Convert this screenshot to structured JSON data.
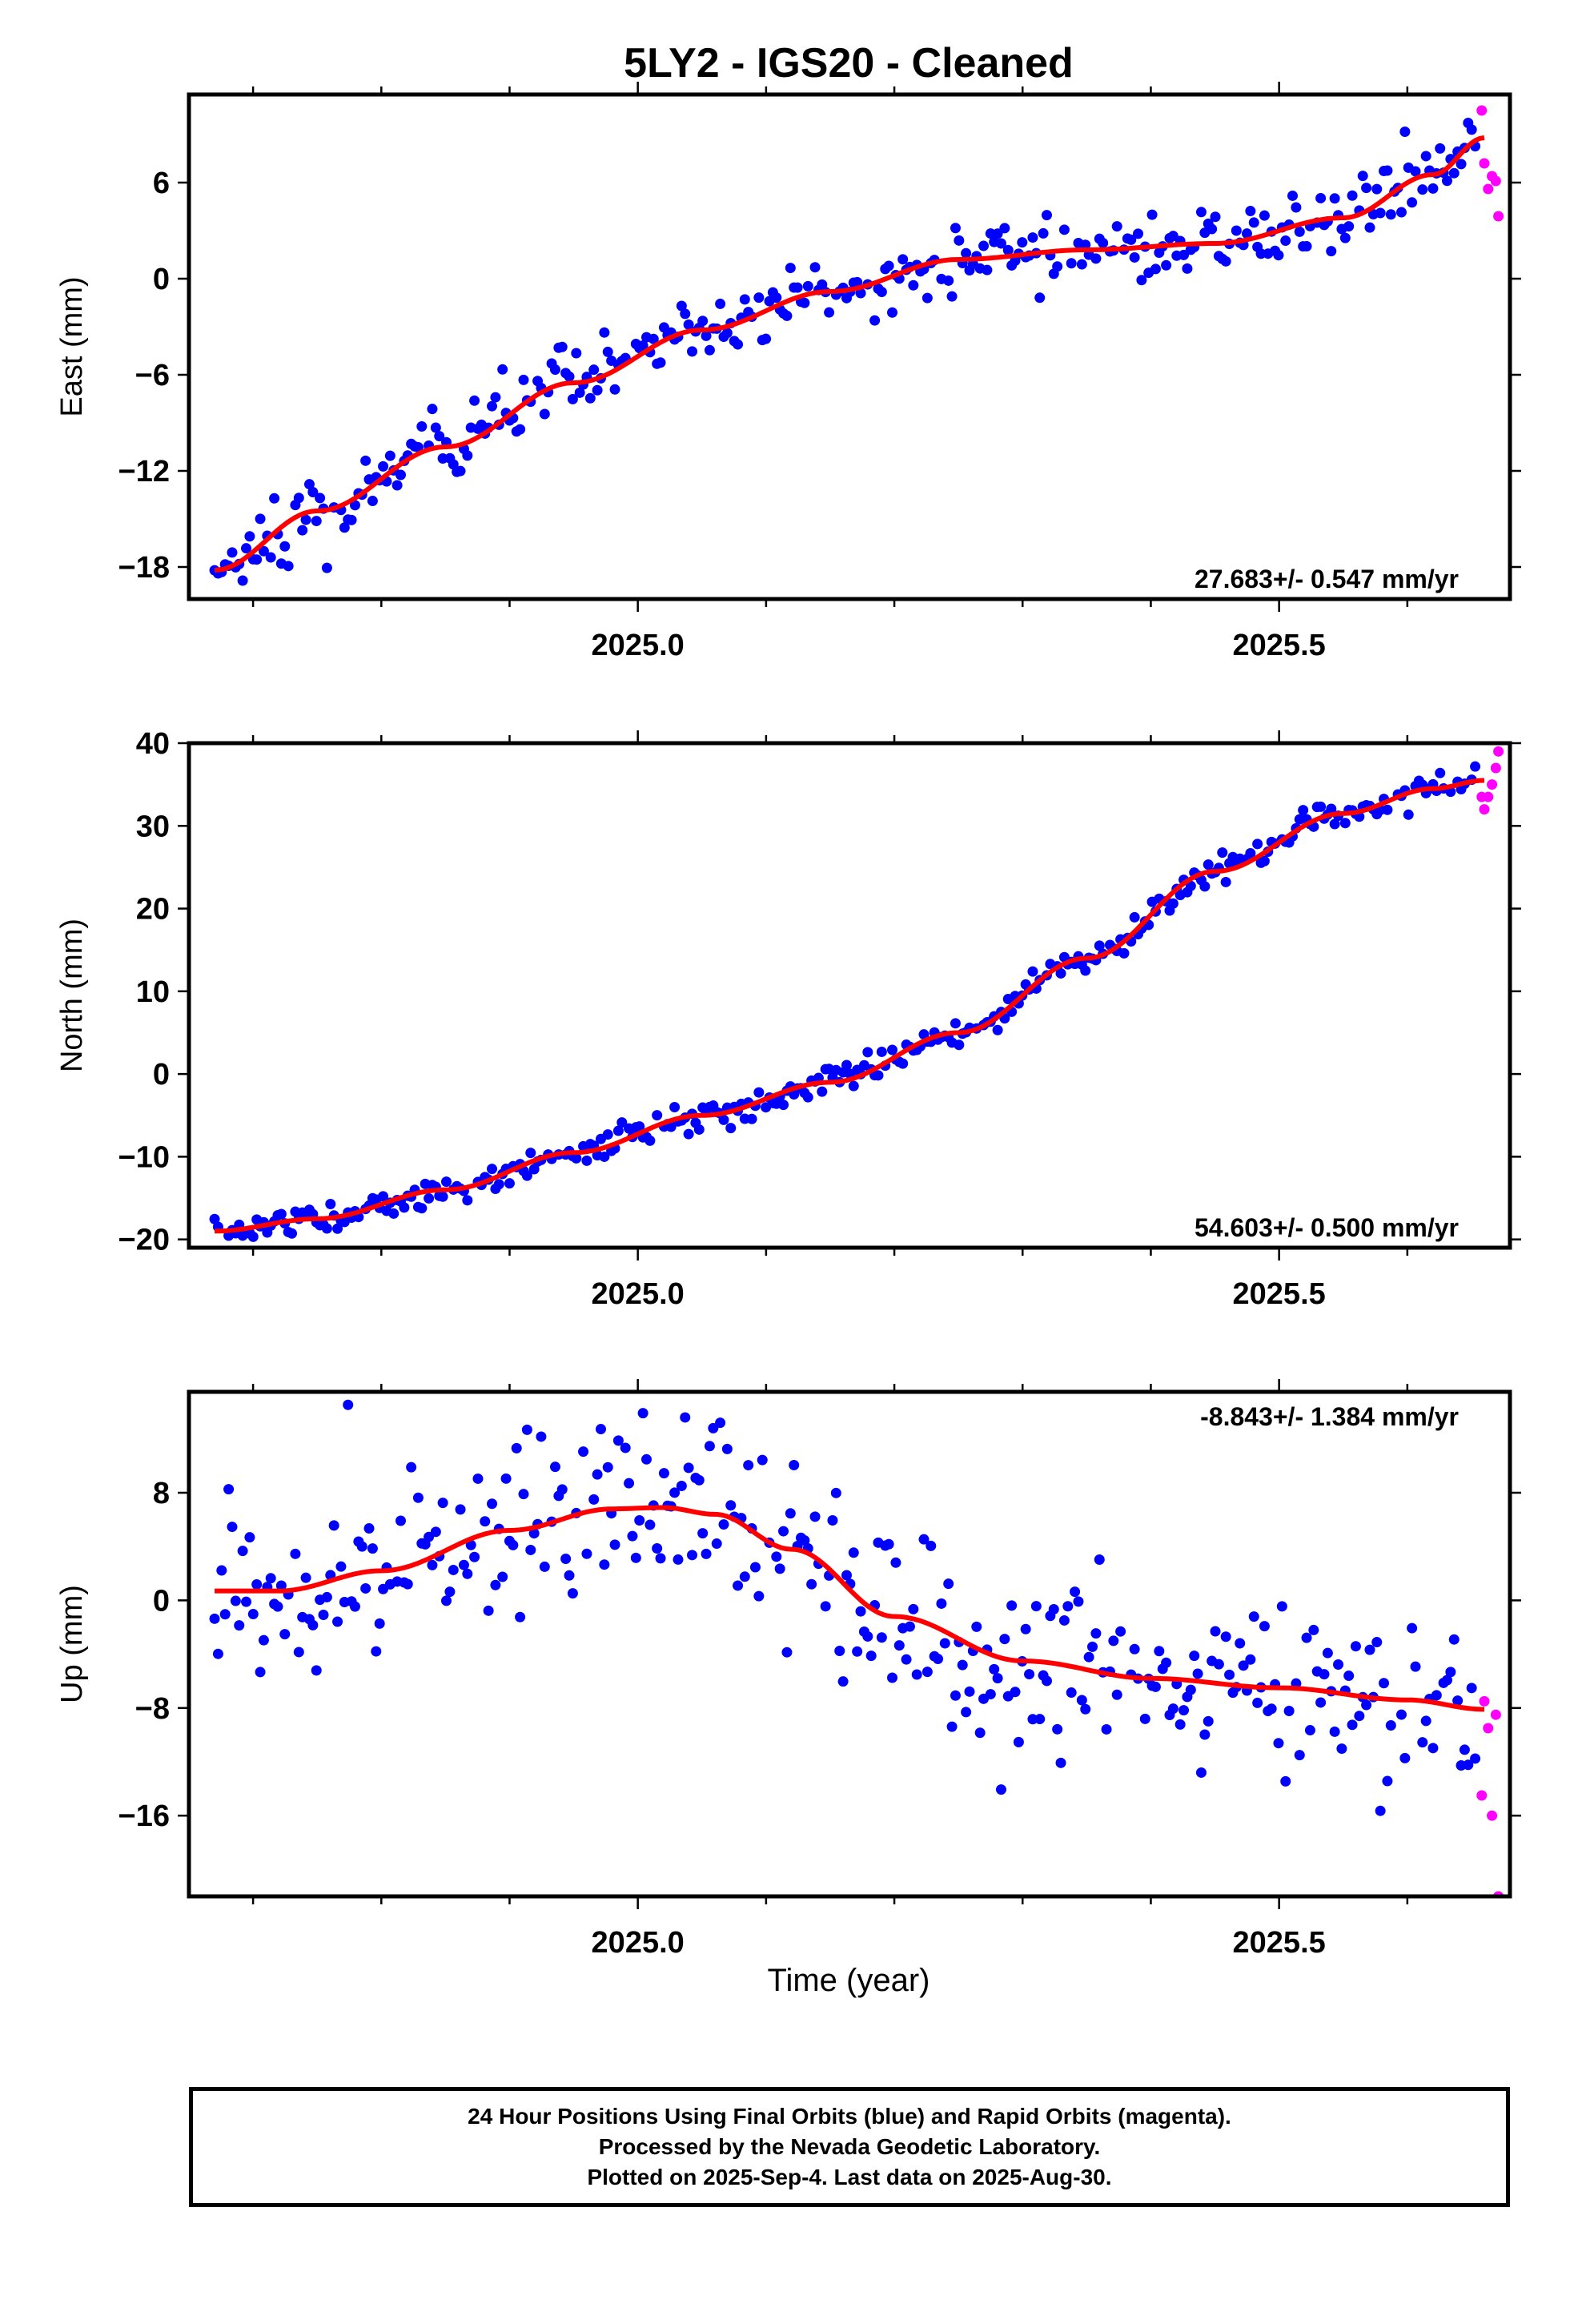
{
  "title": "5LY2  - IGS20 - Cleaned",
  "xlabel": "Time (year)",
  "footer": {
    "lines": [
      "24 Hour Positions Using Final Orbits (blue) and Rapid Orbits (magenta).",
      "Processed by the Nevada Geodetic Laboratory.",
      "Plotted on 2025-Sep-4. Last data on 2025-Aug-30."
    ]
  },
  "colors": {
    "final": "#0000ff",
    "rapid": "#ff00ff",
    "fit": "#ff0000",
    "frame": "#000000"
  },
  "chart_data": [
    {
      "type": "scatter",
      "id": "east",
      "ylabel": "East (mm)",
      "rate": "27.683+/- 0.547 mm/yr",
      "rate_position": "bottom-right",
      "xlim": [
        2024.65,
        2025.68
      ],
      "ylim": [
        -20,
        11.5
      ],
      "xticks": [
        2025.0,
        2025.5
      ],
      "xtick_labels": [
        "2025.0",
        "2025.5"
      ],
      "yticks": [
        -18,
        -12,
        -6,
        0,
        6
      ],
      "ytick_labels": [
        "−18",
        "−12",
        "−6",
        "0",
        "6"
      ],
      "fit": {
        "x": [
          2024.67,
          2024.75,
          2024.85,
          2024.95,
          2025.05,
          2025.15,
          2025.25,
          2025.35,
          2025.45,
          2025.55,
          2025.62,
          2025.66
        ],
        "y": [
          -18.2,
          -14.5,
          -10.5,
          -6.5,
          -3.2,
          -0.8,
          1.2,
          1.8,
          2.2,
          3.8,
          6.5,
          8.8
        ]
      },
      "rapid": {
        "x": [
          2025.658,
          2025.66,
          2025.663,
          2025.666,
          2025.669,
          2025.671
        ],
        "y": [
          10.5,
          7.2,
          5.6,
          6.4,
          6.1,
          3.9
        ]
      }
    },
    {
      "type": "scatter",
      "id": "north",
      "ylabel": "North (mm)",
      "rate": "54.603+/- 0.500 mm/yr",
      "rate_position": "bottom-right",
      "xlim": [
        2024.65,
        2025.68
      ],
      "ylim": [
        -21,
        40
      ],
      "xticks": [
        2025.0,
        2025.5
      ],
      "xtick_labels": [
        "2025.0",
        "2025.5"
      ],
      "yticks": [
        -20,
        -10,
        0,
        10,
        20,
        30,
        40
      ],
      "ytick_labels": [
        "−20",
        "−10",
        "0",
        "10",
        "20",
        "30",
        "40"
      ],
      "fit": {
        "x": [
          2024.67,
          2024.75,
          2024.85,
          2024.95,
          2025.05,
          2025.15,
          2025.25,
          2025.35,
          2025.45,
          2025.55,
          2025.62,
          2025.66
        ],
        "y": [
          -19.0,
          -17.5,
          -14.0,
          -9.5,
          -5.0,
          -1.0,
          5.0,
          14.0,
          24.5,
          31.5,
          34.5,
          35.5
        ]
      },
      "rapid": {
        "x": [
          2025.658,
          2025.66,
          2025.663,
          2025.666,
          2025.669,
          2025.671
        ],
        "y": [
          33.5,
          32.0,
          33.5,
          35.0,
          37.0,
          39.0
        ]
      }
    },
    {
      "type": "scatter",
      "id": "up",
      "ylabel": "Up (mm)",
      "rate": "-8.843+/- 1.384 mm/yr",
      "rate_position": "top-right",
      "xlim": [
        2024.65,
        2025.68
      ],
      "ylim": [
        -22,
        15.5
      ],
      "xticks": [
        2025.0,
        2025.5
      ],
      "xtick_labels": [
        "2025.0",
        "2025.5"
      ],
      "yticks": [
        -16,
        -8,
        0,
        8
      ],
      "ytick_labels": [
        "−16",
        "−8",
        "0",
        "8"
      ],
      "fit": {
        "x": [
          2024.67,
          2024.72,
          2024.8,
          2024.9,
          2024.98,
          2025.02,
          2025.06,
          2025.12,
          2025.2,
          2025.3,
          2025.4,
          2025.5,
          2025.6,
          2025.66
        ],
        "y": [
          0.7,
          0.7,
          2.2,
          5.2,
          6.8,
          6.9,
          6.4,
          3.8,
          -1.2,
          -4.5,
          -5.8,
          -6.5,
          -7.4,
          -8.1
        ]
      },
      "rapid": {
        "x": [
          2025.658,
          2025.66,
          2025.663,
          2025.666,
          2025.669,
          2025.671
        ],
        "y": [
          -14.5,
          -7.5,
          -9.5,
          -16.0,
          -8.5,
          -22.0
        ]
      }
    }
  ]
}
